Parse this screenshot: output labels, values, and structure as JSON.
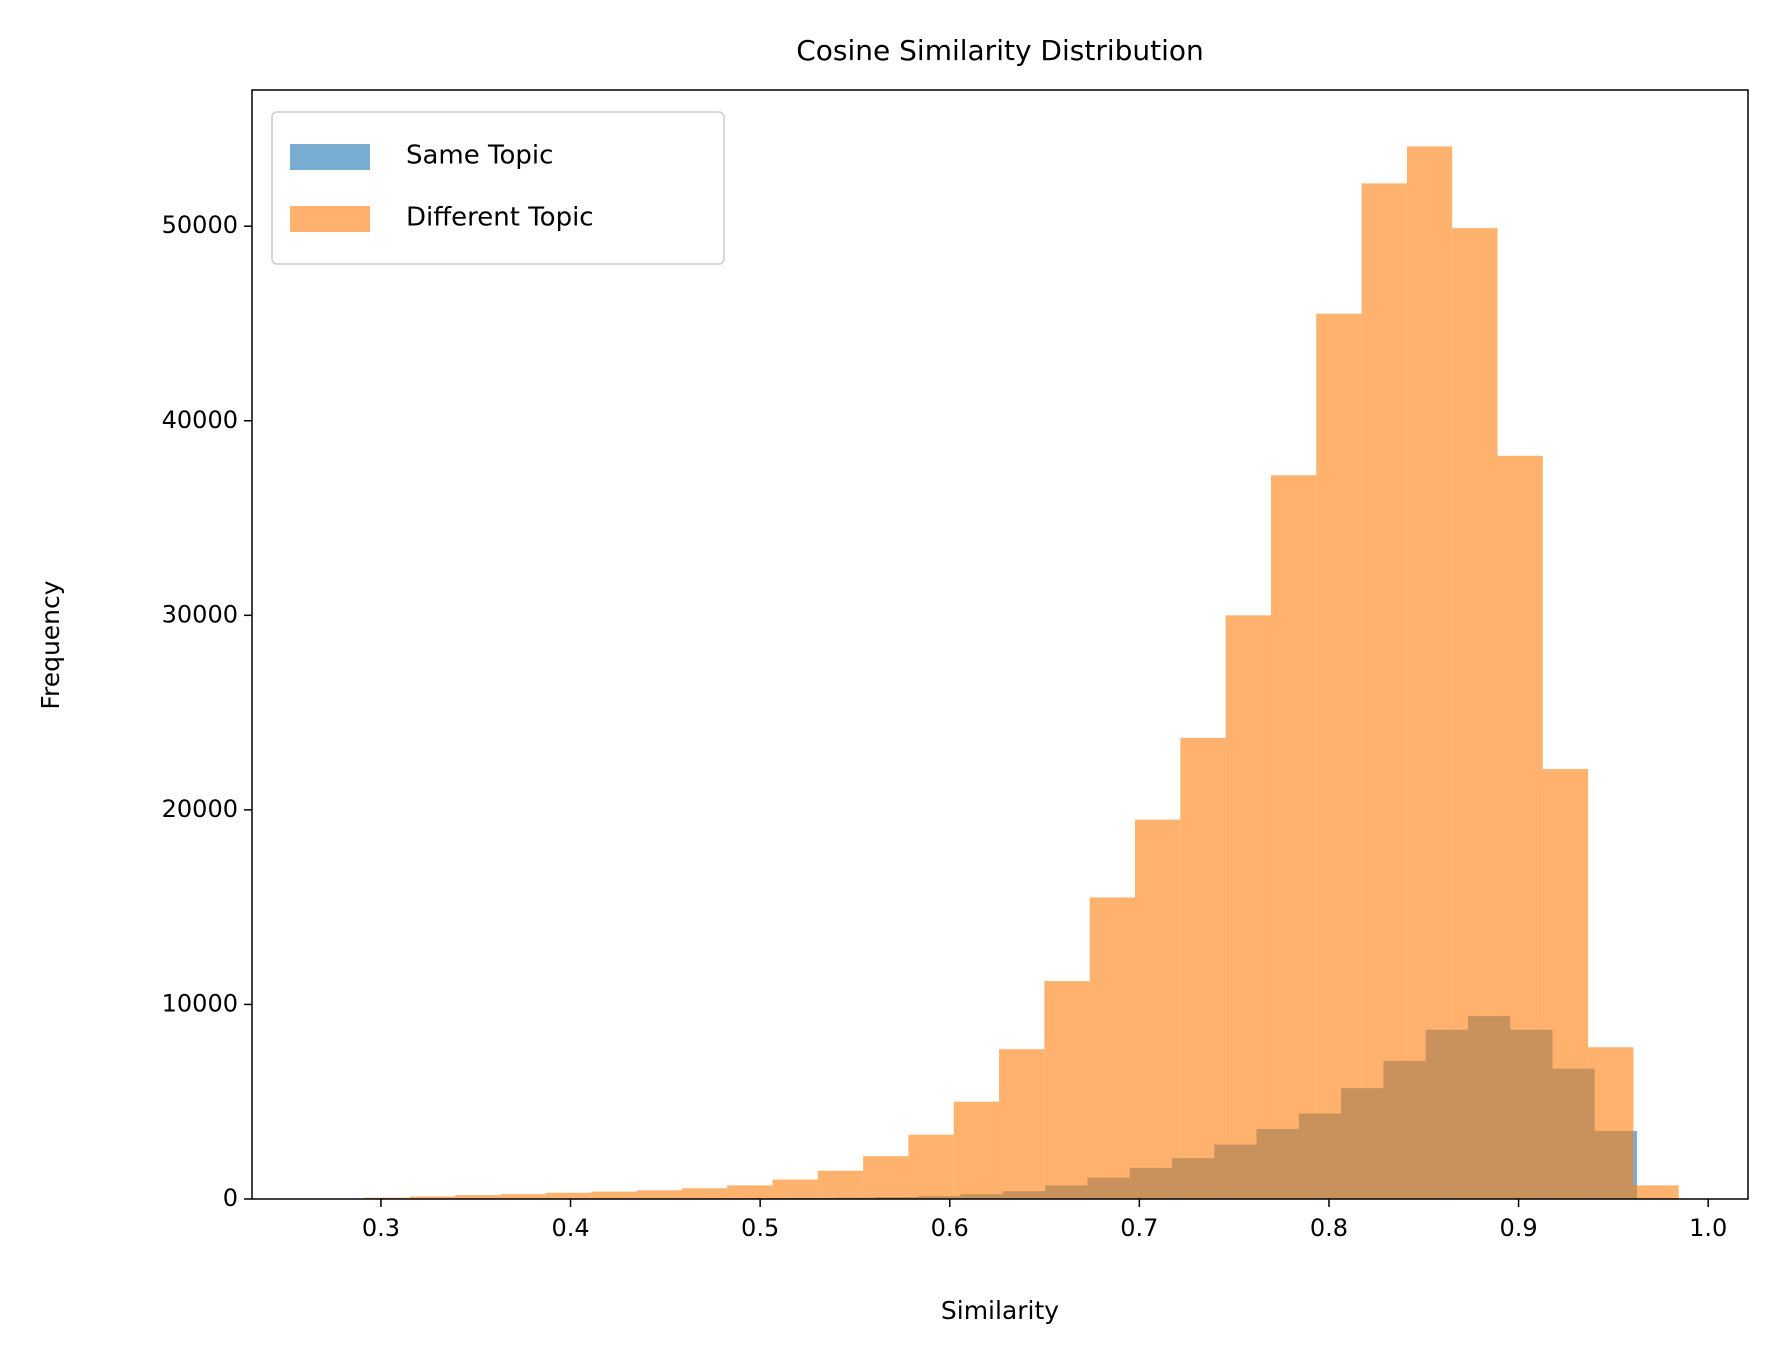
{
  "chart_data": {
    "type": "histogram",
    "title": "Cosine Similarity Distribution",
    "x_label": "Similarity",
    "y_label": "Frequency",
    "xlim": [
      0.232,
      1.021
    ],
    "ylim": [
      0,
      57000
    ],
    "xticks": [
      0.3,
      0.4,
      0.5,
      0.6,
      0.7,
      0.8,
      0.9,
      {
        "value": 1,
        "label": "1.0"
      }
    ],
    "yticks": [
      0,
      10000,
      20000,
      30000,
      40000,
      50000
    ],
    "legend": "upper left",
    "opacity": 0.6,
    "series": [
      {
        "name": "Same Topic",
        "color": "#1f77b4",
        "bins": [
          0.2935,
          0.3158,
          0.3381,
          0.3604,
          0.3827,
          0.405,
          0.4273,
          0.4496,
          0.4719,
          0.4942,
          0.5165,
          0.5388,
          0.5611,
          0.5834,
          0.6057,
          0.628,
          0.6503,
          0.6726,
          0.6949,
          0.7172,
          0.7395,
          0.7618,
          0.7841,
          0.8064,
          0.8287,
          0.851,
          0.8733,
          0.8956,
          0.9179,
          0.9402,
          0.9625
        ],
        "values": [
          0,
          0,
          2,
          5,
          8,
          10,
          15,
          20,
          30,
          40,
          50,
          70,
          100,
          150,
          250,
          400,
          700,
          1100,
          1600,
          2100,
          2800,
          3600,
          4400,
          5700,
          7100,
          8700,
          9400,
          8700,
          6700,
          3500
        ]
      },
      {
        "name": "Different Topic",
        "color": "#ff7f0e",
        "bins": [
          0.2675,
          0.2914,
          0.3153,
          0.3392,
          0.3631,
          0.387,
          0.4109,
          0.4348,
          0.4587,
          0.4826,
          0.5065,
          0.5304,
          0.5543,
          0.5782,
          0.6021,
          0.626,
          0.6499,
          0.6738,
          0.6977,
          0.7216,
          0.7455,
          0.7694,
          0.7933,
          0.8172,
          0.8411,
          0.865,
          0.8889,
          0.9128,
          0.9367,
          0.9606,
          0.9845
        ],
        "values": [
          20,
          70,
          130,
          200,
          250,
          320,
          380,
          450,
          550,
          700,
          1000,
          1450,
          2200,
          3300,
          5000,
          7700,
          11200,
          15500,
          19500,
          23700,
          30000,
          37200,
          45500,
          52200,
          54100,
          49900,
          38200,
          22100,
          7800,
          700
        ]
      }
    ]
  }
}
